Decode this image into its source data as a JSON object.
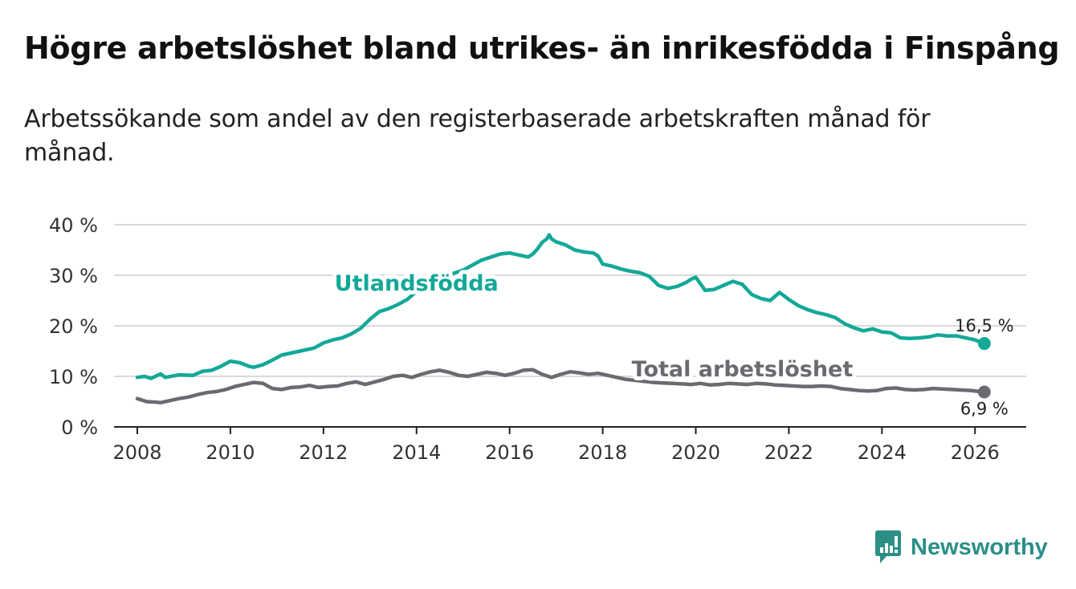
{
  "title": "Högre arbetslöshet bland utrikes- än inrikesfödda i Finspång",
  "subtitle": "Arbetssökande som andel av den registerbaserade arbetskraften månad för månad.",
  "brand": {
    "name": "Newsworthy",
    "icon": "newsworthy-logo-icon"
  },
  "colors": {
    "foreign": "#13a898",
    "total": "#6b6a70",
    "grid": "#d9d9d9",
    "axis": "#222222",
    "brand": "#2b8f86"
  },
  "chart_data": {
    "type": "line",
    "title": "Högre arbetslöshet bland utrikes- än inrikesfödda i Finspång",
    "xlabel": "",
    "ylabel": "",
    "xlim": [
      2007.5,
      2027.1
    ],
    "ylim": [
      0,
      40
    ],
    "y_ticks": [
      0,
      10,
      20,
      30,
      40
    ],
    "y_tick_labels": [
      "0 %",
      "10 %",
      "20 %",
      "30 %",
      "40 %"
    ],
    "x_ticks": [
      2008,
      2010,
      2012,
      2014,
      2016,
      2018,
      2020,
      2022,
      2024,
      2026
    ],
    "x_tick_labels": [
      "2008",
      "2010",
      "2012",
      "2014",
      "2016",
      "2018",
      "2020",
      "2022",
      "2024",
      "2026"
    ],
    "grid": true,
    "series": [
      {
        "name": "Utlandsfödda",
        "end_label": "16,5 %",
        "x": [
          2008.0,
          2008.15,
          2008.3,
          2008.5,
          2008.6,
          2008.9,
          2009.2,
          2009.4,
          2009.6,
          2009.8,
          2010.0,
          2010.2,
          2010.4,
          2010.5,
          2010.7,
          2010.9,
          2011.1,
          2011.3,
          2011.5,
          2011.8,
          2012.0,
          2012.2,
          2012.4,
          2012.6,
          2012.8,
          2013.0,
          2013.2,
          2013.4,
          2013.6,
          2013.8,
          2014.0,
          2014.2,
          2014.4,
          2014.6,
          2014.8,
          2015.0,
          2015.2,
          2015.4,
          2015.6,
          2015.8,
          2016.0,
          2016.2,
          2016.4,
          2016.5,
          2016.6,
          2016.7,
          2016.8,
          2016.85,
          2016.9,
          2017.0,
          2017.2,
          2017.4,
          2017.6,
          2017.8,
          2017.9,
          2018.0,
          2018.2,
          2018.4,
          2018.6,
          2018.8,
          2019.0,
          2019.2,
          2019.4,
          2019.6,
          2019.8,
          2019.9,
          2020.0,
          2020.2,
          2020.4,
          2020.6,
          2020.8,
          2021.0,
          2021.2,
          2021.4,
          2021.6,
          2021.8,
          2022.0,
          2022.2,
          2022.4,
          2022.6,
          2022.8,
          2023.0,
          2023.2,
          2023.4,
          2023.6,
          2023.8,
          2024.0,
          2024.2,
          2024.4,
          2024.6,
          2024.8,
          2025.0,
          2025.2,
          2025.4,
          2025.6,
          2025.8,
          2026.0,
          2026.2
        ],
        "values": [
          9.8,
          10.0,
          9.6,
          10.5,
          9.8,
          10.3,
          10.2,
          11.0,
          11.2,
          12.0,
          13.0,
          12.7,
          12.0,
          11.8,
          12.3,
          13.2,
          14.2,
          14.6,
          15.0,
          15.6,
          16.6,
          17.2,
          17.6,
          18.4,
          19.5,
          21.3,
          22.8,
          23.4,
          24.2,
          25.2,
          26.8,
          27.6,
          28.6,
          29.6,
          30.4,
          31.0,
          32.0,
          33.0,
          33.6,
          34.2,
          34.4,
          34.0,
          33.6,
          34.2,
          35.2,
          36.5,
          37.2,
          38.0,
          37.2,
          36.6,
          36.0,
          35.0,
          34.6,
          34.4,
          33.8,
          32.2,
          31.8,
          31.2,
          30.8,
          30.5,
          29.8,
          28.0,
          27.4,
          27.8,
          28.6,
          29.2,
          29.6,
          27.0,
          27.2,
          28.0,
          28.8,
          28.2,
          26.2,
          25.4,
          25.0,
          26.6,
          25.2,
          24.0,
          23.2,
          22.6,
          22.2,
          21.6,
          20.4,
          19.6,
          19.0,
          19.4,
          18.8,
          18.6,
          17.6,
          17.5,
          17.6,
          17.8,
          18.2,
          18.0,
          18.0,
          17.6,
          17.2,
          16.5
        ]
      },
      {
        "name": "Total arbetslöshet",
        "end_label": "6,9 %",
        "x": [
          2008.0,
          2008.2,
          2008.4,
          2008.5,
          2008.7,
          2008.9,
          2009.1,
          2009.3,
          2009.5,
          2009.7,
          2009.9,
          2010.1,
          2010.3,
          2010.5,
          2010.7,
          2010.9,
          2011.1,
          2011.3,
          2011.5,
          2011.7,
          2011.9,
          2012.1,
          2012.3,
          2012.5,
          2012.7,
          2012.9,
          2013.1,
          2013.3,
          2013.5,
          2013.7,
          2013.9,
          2014.1,
          2014.3,
          2014.5,
          2014.7,
          2014.9,
          2015.1,
          2015.3,
          2015.5,
          2015.7,
          2015.9,
          2016.1,
          2016.3,
          2016.5,
          2016.7,
          2016.9,
          2017.1,
          2017.3,
          2017.5,
          2017.7,
          2017.9,
          2018.1,
          2018.3,
          2018.5,
          2018.7,
          2018.9,
          2019.1,
          2019.3,
          2019.5,
          2019.7,
          2019.9,
          2020.1,
          2020.3,
          2020.5,
          2020.7,
          2020.9,
          2021.1,
          2021.3,
          2021.5,
          2021.7,
          2021.9,
          2022.1,
          2022.3,
          2022.5,
          2022.7,
          2022.9,
          2023.1,
          2023.3,
          2023.5,
          2023.7,
          2023.9,
          2024.1,
          2024.3,
          2024.5,
          2024.7,
          2024.9,
          2025.1,
          2025.3,
          2025.5,
          2025.7,
          2025.9,
          2026.2
        ],
        "values": [
          5.6,
          5.0,
          4.9,
          4.8,
          5.2,
          5.6,
          5.9,
          6.4,
          6.8,
          7.0,
          7.4,
          8.0,
          8.4,
          8.8,
          8.6,
          7.6,
          7.4,
          7.8,
          7.9,
          8.2,
          7.8,
          8.0,
          8.1,
          8.6,
          8.9,
          8.4,
          8.9,
          9.4,
          10.0,
          10.2,
          9.8,
          10.4,
          10.9,
          11.2,
          10.8,
          10.2,
          10.0,
          10.4,
          10.8,
          10.6,
          10.2,
          10.6,
          11.2,
          11.3,
          10.4,
          9.8,
          10.4,
          10.9,
          10.7,
          10.4,
          10.6,
          10.2,
          9.8,
          9.4,
          9.2,
          9.0,
          8.8,
          8.7,
          8.6,
          8.5,
          8.4,
          8.6,
          8.3,
          8.4,
          8.6,
          8.5,
          8.4,
          8.6,
          8.5,
          8.3,
          8.2,
          8.1,
          8.0,
          8.0,
          8.1,
          8.0,
          7.6,
          7.4,
          7.2,
          7.1,
          7.2,
          7.6,
          7.7,
          7.4,
          7.3,
          7.4,
          7.6,
          7.5,
          7.4,
          7.3,
          7.2,
          6.9
        ]
      }
    ],
    "annotations": [
      {
        "text": "Utlandsfödda",
        "series": "Utlandsfödda",
        "x": 2014.0,
        "y": 27.0
      },
      {
        "text": "Total arbetslöshet",
        "series": "Total arbetslöshet",
        "x": 2021.0,
        "y": 10.0
      }
    ]
  }
}
